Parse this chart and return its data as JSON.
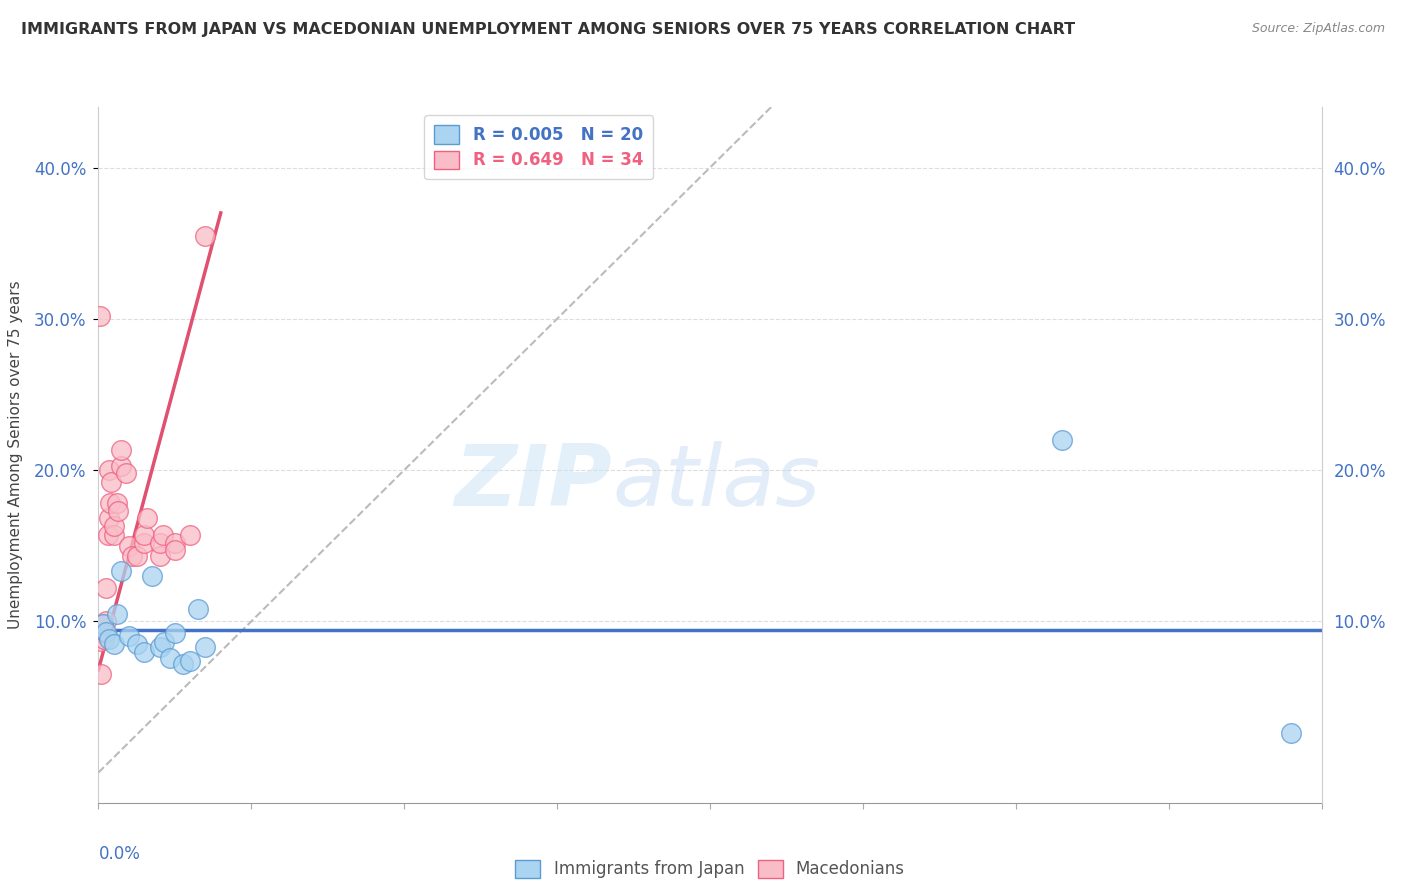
{
  "title": "IMMIGRANTS FROM JAPAN VS MACEDONIAN UNEMPLOYMENT AMONG SENIORS OVER 75 YEARS CORRELATION CHART",
  "source": "Source: ZipAtlas.com",
  "ylabel": "Unemployment Among Seniors over 75 years",
  "ytick_values": [
    0.1,
    0.2,
    0.3,
    0.4
  ],
  "ytick_labels": [
    "10.0%",
    "20.0%",
    "30.0%",
    "40.0%"
  ],
  "xmin": 0.0,
  "xmax": 0.08,
  "ymin": -0.02,
  "ymax": 0.44,
  "legend_japan": "R = 0.005   N = 20",
  "legend_macedonian": "R = 0.649   N = 34",
  "watermark_zip": "ZIP",
  "watermark_atlas": "atlas",
  "japan_color": "#aad4f0",
  "macedonian_color": "#f9bdc8",
  "japan_edge_color": "#5b9bd5",
  "macedonian_edge_color": "#f06080",
  "japan_line_color": "#4472c4",
  "macedonian_line_color": "#e05070",
  "japan_scatter": [
    [
      0.0003,
      0.098
    ],
    [
      0.0005,
      0.093
    ],
    [
      0.0007,
      0.088
    ],
    [
      0.001,
      0.085
    ],
    [
      0.0012,
      0.105
    ],
    [
      0.0015,
      0.133
    ],
    [
      0.002,
      0.09
    ],
    [
      0.0025,
      0.085
    ],
    [
      0.003,
      0.08
    ],
    [
      0.0035,
      0.13
    ],
    [
      0.004,
      0.083
    ],
    [
      0.0043,
      0.086
    ],
    [
      0.0047,
      0.076
    ],
    [
      0.005,
      0.092
    ],
    [
      0.0055,
      0.072
    ],
    [
      0.006,
      0.074
    ],
    [
      0.0065,
      0.108
    ],
    [
      0.007,
      0.083
    ],
    [
      0.063,
      0.22
    ],
    [
      0.078,
      0.026
    ]
  ],
  "macedonian_scatter": [
    [
      0.00015,
      0.065
    ],
    [
      0.0002,
      0.087
    ],
    [
      0.0003,
      0.092
    ],
    [
      0.0003,
      0.098
    ],
    [
      0.00035,
      0.088
    ],
    [
      0.0004,
      0.093
    ],
    [
      0.0005,
      0.1
    ],
    [
      0.0005,
      0.122
    ],
    [
      0.0006,
      0.157
    ],
    [
      0.0007,
      0.168
    ],
    [
      0.0007,
      0.2
    ],
    [
      0.00075,
      0.178
    ],
    [
      0.0008,
      0.192
    ],
    [
      0.001,
      0.157
    ],
    [
      0.001,
      0.163
    ],
    [
      0.0012,
      0.178
    ],
    [
      0.0013,
      0.173
    ],
    [
      0.0015,
      0.203
    ],
    [
      0.0015,
      0.213
    ],
    [
      0.0018,
      0.198
    ],
    [
      0.002,
      0.15
    ],
    [
      0.0022,
      0.143
    ],
    [
      0.0025,
      0.143
    ],
    [
      0.003,
      0.152
    ],
    [
      0.003,
      0.157
    ],
    [
      0.0032,
      0.168
    ],
    [
      0.004,
      0.143
    ],
    [
      0.004,
      0.152
    ],
    [
      0.0042,
      0.157
    ],
    [
      0.005,
      0.152
    ],
    [
      0.005,
      0.147
    ],
    [
      0.006,
      0.157
    ],
    [
      0.007,
      0.355
    ],
    [
      0.00012,
      0.302
    ]
  ],
  "japan_trend_x": [
    0.0,
    0.08
  ],
  "japan_trend_y": [
    0.094,
    0.094
  ],
  "macedonian_trend_x": [
    0.0,
    0.008
  ],
  "macedonian_trend_y": [
    0.068,
    0.37
  ],
  "diag_line_x": [
    0.0,
    0.044
  ],
  "diag_line_y": [
    0.0,
    0.44
  ],
  "xtick_positions": [
    0.0,
    0.01,
    0.02,
    0.03,
    0.04,
    0.05,
    0.06,
    0.07,
    0.08
  ]
}
